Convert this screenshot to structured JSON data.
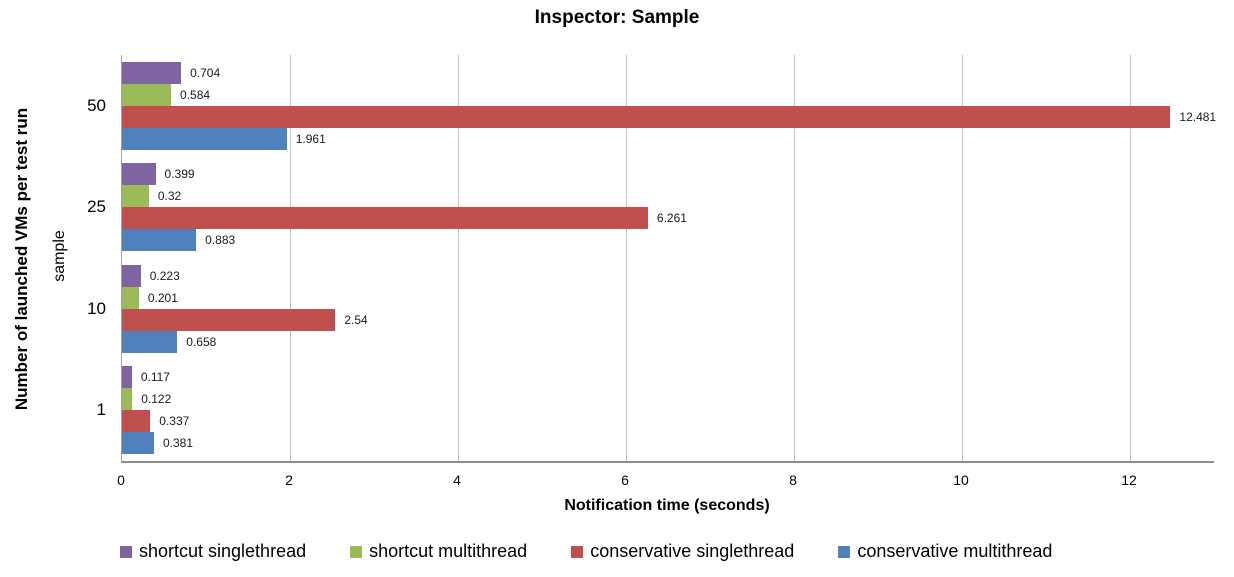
{
  "chart": {
    "title": "Inspector: Sample",
    "x_axis_title": "Notification time (seconds)",
    "y_axis_title": "Number of launched VMs per test run",
    "y_axis_sublabel": "sample"
  },
  "chart_data": {
    "type": "bar",
    "orientation": "horizontal",
    "title": "Inspector: Sample",
    "xlabel": "Notification time (seconds)",
    "ylabel": "Number of launched VMs per test run",
    "ylabel_secondary": "sample",
    "categories": [
      "50",
      "25",
      "10",
      "1"
    ],
    "category_order": "top-to-bottom",
    "series": [
      {
        "name": "shortcut singlethread",
        "color": "#8064A2",
        "values": [
          0.704,
          0.399,
          0.223,
          0.117
        ],
        "labels": [
          "0.704",
          "0.399",
          "0.223",
          "0.117"
        ]
      },
      {
        "name": "shortcut multithread",
        "color": "#9BBB59",
        "values": [
          0.584,
          0.32,
          0.201,
          0.122
        ],
        "labels": [
          "0.584",
          "0.32",
          "0.201",
          "0.122"
        ]
      },
      {
        "name": "conservative singlethread",
        "color": "#C0504D",
        "values": [
          12.481,
          6.261,
          2.54,
          0.337
        ],
        "labels": [
          "12.481",
          "6.261",
          "2.54",
          "0.337"
        ]
      },
      {
        "name": "conservative multithread",
        "color": "#4F81BD",
        "values": [
          1.961,
          0.883,
          0.658,
          0.381
        ],
        "labels": [
          "1.961",
          "0.883",
          "0.658",
          "0.381"
        ]
      }
    ],
    "x_ticks": [
      0,
      2,
      4,
      6,
      8,
      10,
      12
    ],
    "x_tick_labels": [
      "0",
      "2",
      "4",
      "6",
      "8",
      "10",
      "12"
    ],
    "xlim": [
      0,
      13
    ],
    "grid": "vertical",
    "legend_position": "bottom",
    "axis_colors": {
      "axis_line": "#8E8E8E",
      "gridline": "#C3C3C3",
      "text": "#000000"
    }
  }
}
